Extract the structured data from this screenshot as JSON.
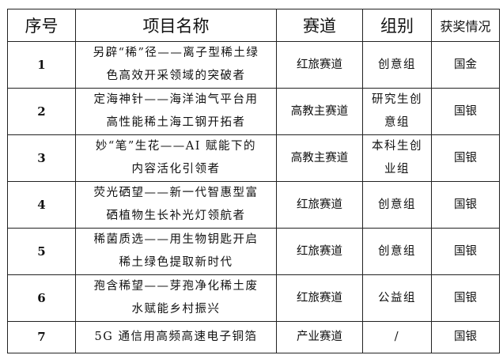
{
  "headers": {
    "index": "序号",
    "name": "项目名称",
    "track": "赛道",
    "group": "组别",
    "award": "获奖情况"
  },
  "rows": [
    {
      "index": "1",
      "name_lines": [
        "另辟“稀”径——离子型稀土绿",
        "色高效开采领域的突破者"
      ],
      "track": "红旅赛道",
      "group_lines": [
        "创意组"
      ],
      "award": "国金"
    },
    {
      "index": "2",
      "name_lines": [
        "定海神针——海洋油气平台用",
        "高性能稀土海工钢开拓者"
      ],
      "track": "高教主赛道",
      "group_lines": [
        "研究生创",
        "意组"
      ],
      "award": "国银"
    },
    {
      "index": "3",
      "name_lines": [
        "妙“笔”生花——AI 赋能下的",
        "内容活化引领者"
      ],
      "track": "高教主赛道",
      "group_lines": [
        "本科生创",
        "业组"
      ],
      "award": "国银"
    },
    {
      "index": "4",
      "name_lines": [
        "荧光硒望——新一代智惠型富",
        "硒植物生长补光灯领航者"
      ],
      "track": "红旅赛道",
      "group_lines": [
        "创意组"
      ],
      "award": "国银"
    },
    {
      "index": "5",
      "name_lines": [
        "稀菌质选——用生物钥匙开启",
        "稀土绿色提取新时代"
      ],
      "track": "红旅赛道",
      "group_lines": [
        "创意组"
      ],
      "award": "国银"
    },
    {
      "index": "6",
      "name_lines": [
        "孢含稀望——芽孢净化稀土废",
        "水赋能乡村振兴"
      ],
      "track": "红旅赛道",
      "group_lines": [
        "公益组"
      ],
      "award": "国银"
    },
    {
      "index": "7",
      "name_lines": [
        "5G 通信用高频高速电子铜箔"
      ],
      "track": "产业赛道",
      "group_lines": [
        "/"
      ],
      "award": "国银"
    }
  ]
}
